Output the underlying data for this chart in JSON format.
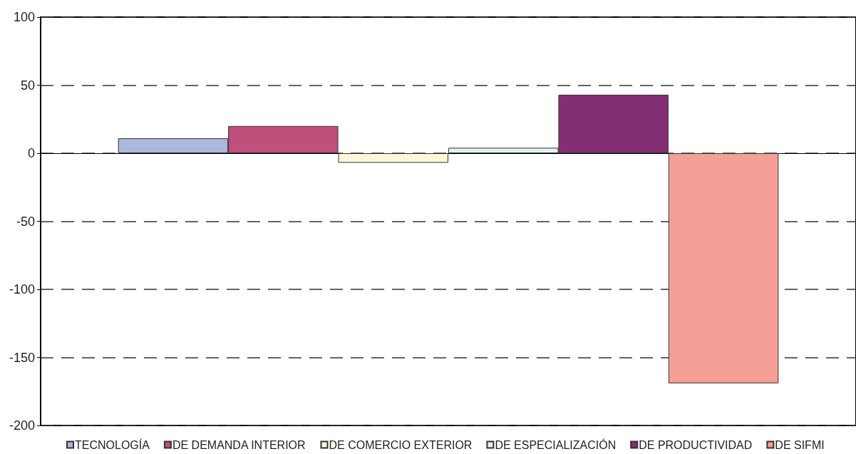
{
  "chart_data": {
    "type": "bar",
    "categories": [
      null
    ],
    "series": [
      {
        "name": "TECNOLOGÍA",
        "color": "#aab8de",
        "values": [
          11
        ]
      },
      {
        "name": "DE DEMANDA INTERIOR",
        "color": "#c04f7c",
        "values": [
          20
        ]
      },
      {
        "name": "DE COMERCIO EXTERIOR",
        "color": "#fdf6da",
        "values": [
          -7
        ]
      },
      {
        "name": "DE ESPECIALIZACIÓN",
        "color": "#e3f3f1",
        "values": [
          4
        ]
      },
      {
        "name": "DE PRODUCTIVIDAD",
        "color": "#842e76",
        "values": [
          43
        ]
      },
      {
        "name": "DE SIFMI",
        "color": "#f4a096",
        "values": [
          -169
        ]
      }
    ],
    "ylim": [
      -200,
      100
    ],
    "yticks": [
      -200,
      -150,
      -100,
      -50,
      0,
      50,
      100
    ],
    "grid": "y",
    "legend": "bottom"
  }
}
